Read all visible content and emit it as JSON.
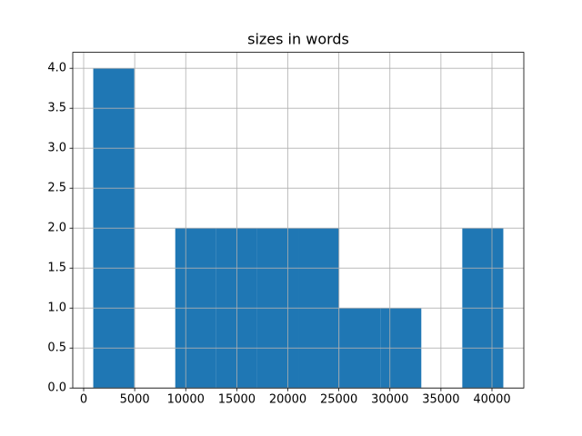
{
  "chart_data": {
    "type": "histogram",
    "title": "sizes in words",
    "bins": [
      940,
      4957,
      8974,
      12991,
      17008,
      21025,
      25042,
      29059,
      33076,
      37093,
      41110
    ],
    "values": [
      4,
      0,
      2,
      2,
      2,
      2,
      1,
      1,
      0,
      2
    ],
    "color": "#1f77b4",
    "xlim": [
      -1069,
      43118
    ],
    "xticks": [
      0,
      5000,
      10000,
      15000,
      20000,
      25000,
      30000,
      35000,
      40000
    ],
    "ylim": [
      0,
      4.2
    ],
    "yticks": [
      {
        "value": 0,
        "label": "0.0"
      },
      {
        "value": 0.5,
        "label": "0.5"
      },
      {
        "value": 1,
        "label": "1.0"
      },
      {
        "value": 1.5,
        "label": "1.5"
      },
      {
        "value": 2,
        "label": "2.0"
      },
      {
        "value": 2.5,
        "label": "2.5"
      },
      {
        "value": 3,
        "label": "3.0"
      },
      {
        "value": 3.5,
        "label": "3.5"
      },
      {
        "value": 4,
        "label": "4.0"
      }
    ],
    "grid": true
  }
}
